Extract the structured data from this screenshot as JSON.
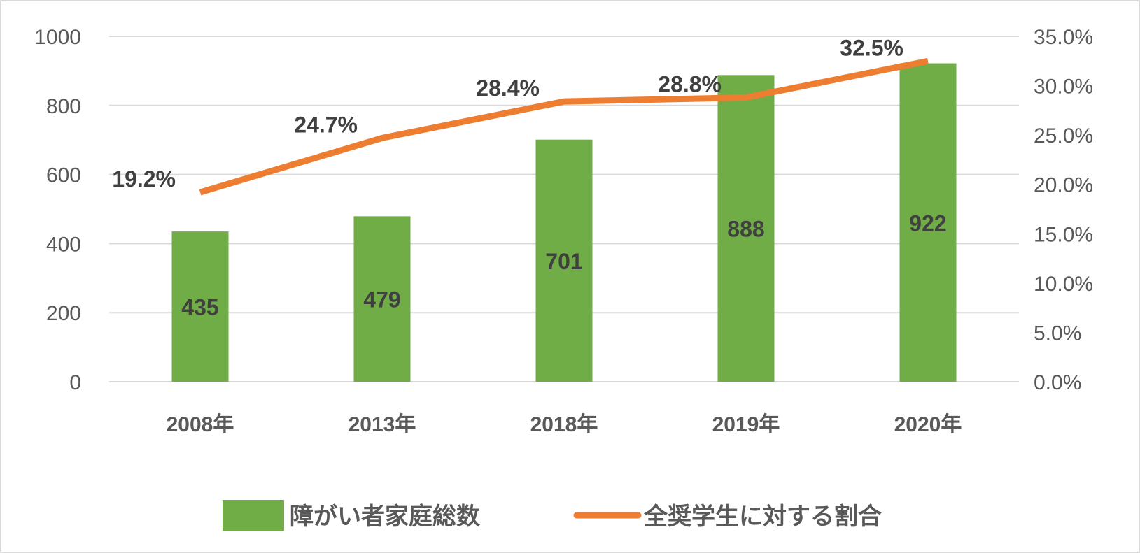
{
  "chart_data": {
    "type": "bar+line",
    "categories": [
      "2008年",
      "2013年",
      "2018年",
      "2019年",
      "2020年"
    ],
    "series": [
      {
        "name": "障がい者家庭総数",
        "type": "bar",
        "axis": "left",
        "values": [
          435,
          479,
          701,
          888,
          922
        ],
        "labels": [
          "435",
          "479",
          "701",
          "888",
          "922"
        ],
        "color": "#70ad47"
      },
      {
        "name": "全奨学生に対する割合",
        "type": "line",
        "axis": "right",
        "values": [
          19.2,
          24.7,
          28.4,
          28.8,
          32.5
        ],
        "labels": [
          "19.2%",
          "24.7%",
          "28.4%",
          "28.8%",
          "32.5%"
        ],
        "color": "#ed7d31"
      }
    ],
    "y_left": {
      "range": [
        0,
        1000
      ],
      "ticks": [
        "0",
        "200",
        "400",
        "600",
        "800",
        "1000"
      ]
    },
    "y_right": {
      "range": [
        0,
        35
      ],
      "ticks": [
        "0.0%",
        "5.0%",
        "10.0%",
        "15.0%",
        "20.0%",
        "25.0%",
        "30.0%",
        "35.0%"
      ]
    },
    "grid": true,
    "legend_position": "bottom",
    "gridline_color": "#d9d9d9"
  }
}
